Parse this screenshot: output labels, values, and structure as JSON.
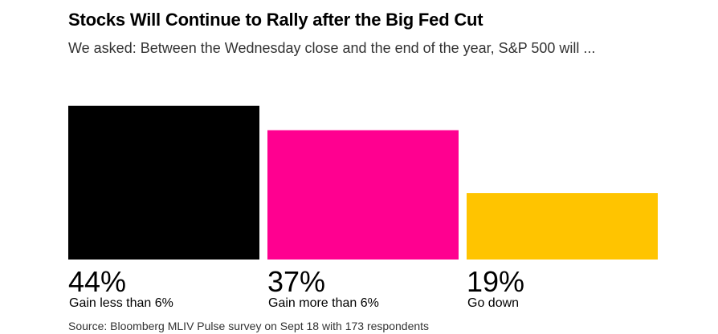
{
  "title": "Stocks Will Continue to Rally after the Big Fed Cut",
  "subtitle": "We asked: Between the Wednesday close and the end of the year, S&P 500 will ...",
  "source": "Source: Bloomberg MLIV Pulse survey on Sept 18 with 173 respondents",
  "chart_data": {
    "type": "bar",
    "categories": [
      "Gain less than 6%",
      "Gain more than 6%",
      "Go down"
    ],
    "values": [
      44,
      37,
      19
    ],
    "value_labels": [
      "44%",
      "37%",
      "19%"
    ],
    "colors": [
      "#000000",
      "#ff0090",
      "#ffc400"
    ],
    "title": "Stocks Will Continue to Rally after the Big Fed Cut",
    "subtitle": "We asked: Between the Wednesday close and the end of the year, S&P 500 will ...",
    "xlabel": "",
    "ylabel": "",
    "ylim": [
      0,
      44
    ],
    "grid": false,
    "legend": "none"
  }
}
